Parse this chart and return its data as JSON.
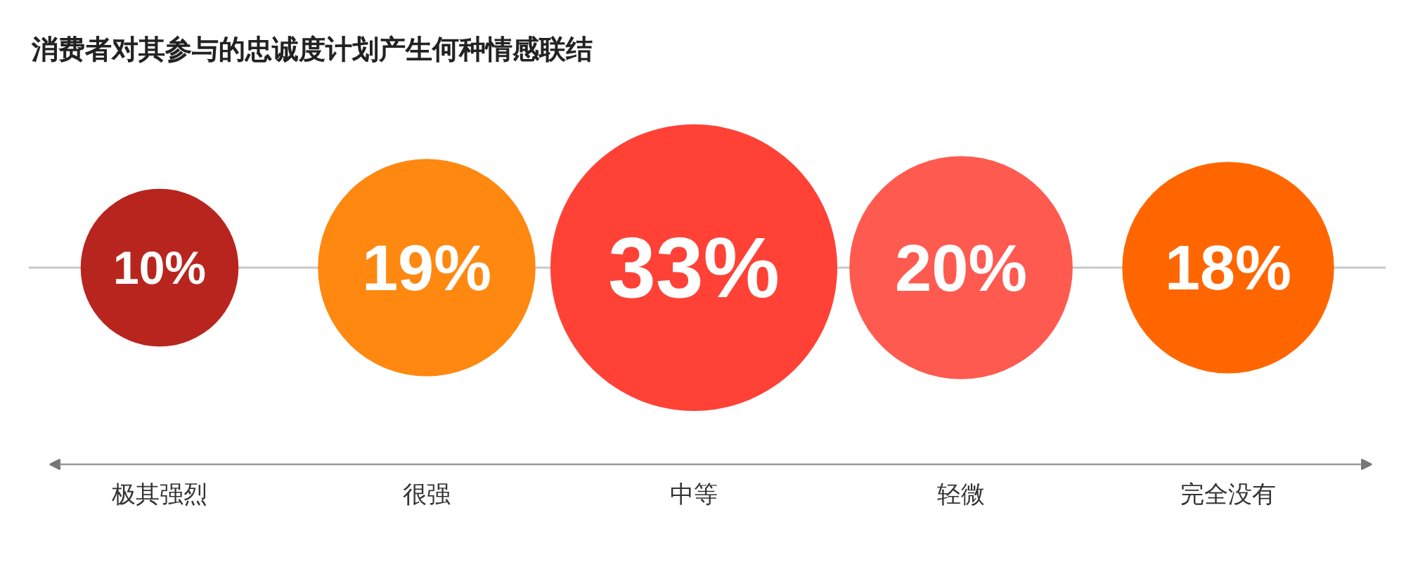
{
  "chart_data": {
    "type": "other",
    "title": "消费者对其参与的忠诚度计划产生何种情感联结",
    "categories": [
      "极其强烈",
      "很强",
      "中等",
      "轻微",
      "完全没有"
    ],
    "values": [
      10,
      19,
      33,
      20,
      18
    ],
    "value_labels": [
      "10%",
      "19%",
      "33%",
      "20%",
      "18%"
    ],
    "colors": [
      "#b8251f",
      "#ff8811",
      "#ff4136",
      "#ff5a50",
      "#ff6600"
    ]
  }
}
